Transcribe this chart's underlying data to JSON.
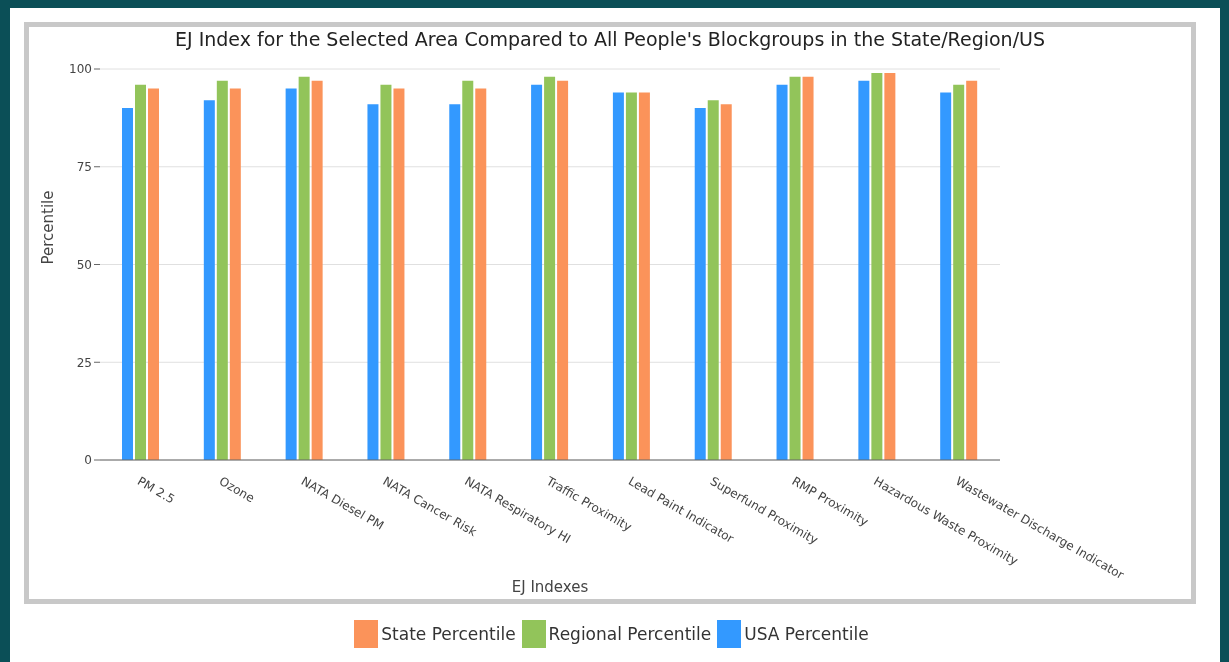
{
  "chart_data": {
    "type": "bar",
    "title": "EJ Index for the Selected Area Compared to All People's Blockgroups in the State/Region/US",
    "xlabel": "EJ Indexes",
    "ylabel": "Percentile",
    "categories": [
      "PM 2.5",
      "Ozone",
      "NATA Diesel PM",
      "NATA Cancer Risk",
      "NATA Respiratory HI",
      "Traffic Proximity",
      "Lead Paint Indicator",
      "Superfund Proximity",
      "RMP Proximity",
      "Hazardous Waste Proximity",
      "Wastewater Discharge Indicator"
    ],
    "series": [
      {
        "name": "USA  Percentile",
        "color": "#3399ff",
        "values": [
          90,
          92,
          95,
          91,
          91,
          96,
          94,
          90,
          96,
          97,
          94
        ]
      },
      {
        "name": "Regional Percentile",
        "color": "#92c45a",
        "values": [
          96,
          97,
          98,
          96,
          97,
          98,
          94,
          92,
          98,
          99,
          96
        ]
      },
      {
        "name": "State Percentile",
        "color": "#fb935a",
        "values": [
          95,
          95,
          97,
          95,
          95,
          97,
          94,
          91,
          98,
          99,
          97
        ]
      }
    ],
    "ylim": [
      0,
      100
    ],
    "yticks": [
      0,
      25,
      50,
      75,
      100
    ],
    "grid": "y",
    "legend": "bottom"
  }
}
